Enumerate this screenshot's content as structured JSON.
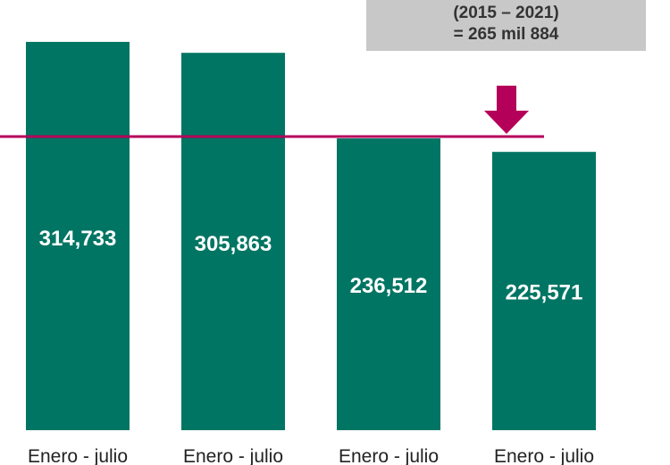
{
  "annotation": {
    "line1": "(2015 – 2021)",
    "line2": "= 265 mil 884"
  },
  "colors": {
    "bar": "#007563",
    "reference_line": "#b5005a",
    "annotation_bg": "#c8c8c8"
  },
  "chart_data": {
    "type": "bar",
    "categories": [
      "Enero - julio",
      "Enero - julio",
      "Enero - julio",
      "Enero - julio"
    ],
    "values": [
      314733,
      305863,
      236512,
      225571
    ],
    "data_labels": [
      "314,733",
      "305,863",
      "236,512",
      "225,571"
    ],
    "reference_line": {
      "value": 265884,
      "label": "(2015 – 2021) = 265 mil 884"
    },
    "ylim": [
      0,
      340000
    ],
    "grid": false,
    "legend": "none"
  }
}
